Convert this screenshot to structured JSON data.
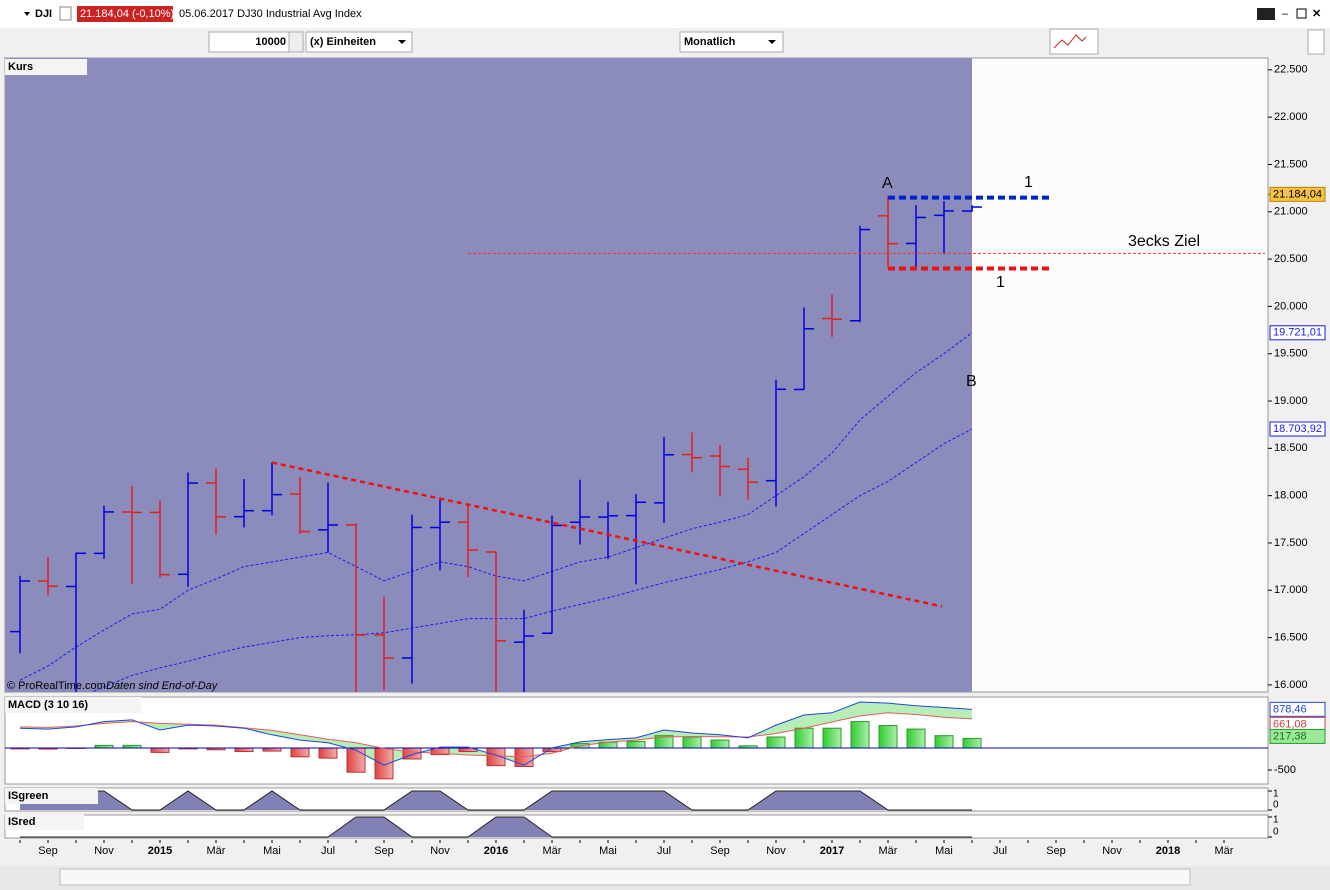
{
  "toolbar": {
    "symbol": "DJI",
    "last": "21.184,04 (-0,10%)",
    "description": "05.06.2017 DJ30 Industrial Avg Index",
    "units_value": "10000",
    "units_label": "(x) Einheiten",
    "period": "Monatlich"
  },
  "chart_data": [
    {
      "type": "ohlc",
      "title": "Kurs",
      "credit": "© ProRealTime.com",
      "credit_note": "Daten sind End-of-Day",
      "categories": [
        null,
        "Sep",
        null,
        "Nov",
        null,
        "2015",
        null,
        "Mär",
        null,
        "Mai",
        null,
        "Jul",
        null,
        "Sep",
        null,
        "Nov",
        null,
        "2016",
        null,
        "Mär",
        null,
        "Mai",
        null,
        "Jul",
        null,
        "Sep",
        null,
        "Nov",
        null,
        "2017",
        null,
        "Mär",
        null,
        "Mai",
        null,
        "Jul",
        null,
        "Sep",
        null,
        "Nov",
        null,
        "2018",
        null,
        "Mär"
      ],
      "open": [
        16563,
        17098,
        17040,
        17390,
        17827,
        17823,
        17169,
        18134,
        17778,
        17841,
        18017,
        17639,
        17690,
        16528,
        16285,
        17663,
        17719,
        17405,
        16452,
        16546,
        17719,
        17773,
        17789,
        17924,
        18434,
        18419,
        18279,
        18158,
        19122,
        19872,
        19848,
        20957,
        20665,
        20962,
        21008,
        null,
        null,
        null,
        null,
        null,
        null,
        null,
        null,
        null
      ],
      "high": [
        17153,
        17350,
        17395,
        17895,
        18103,
        17951,
        18244,
        18288,
        18175,
        18352,
        18199,
        18138,
        17711,
        16934,
        17799,
        17978,
        17899,
        17405,
        16795,
        17790,
        18168,
        17935,
        18016,
        18622,
        18668,
        18534,
        18399,
        19225,
        19987,
        20125,
        20851,
        21169,
        21070,
        21112,
        21070,
        null,
        null,
        null,
        null,
        null,
        null,
        null,
        null,
        null
      ],
      "low": [
        16333,
        16945,
        15855,
        17333,
        17068,
        17136,
        17037,
        17585,
        17665,
        17792,
        17597,
        17399,
        15370,
        15942,
        16014,
        17210,
        17139,
        15450,
        15503,
        16545,
        17484,
        17331,
        17063,
        17713,
        18247,
        17992,
        17959,
        17884,
        19120,
        19677,
        19831,
        20412,
        20379,
        20553,
        21000,
        null,
        null,
        null,
        null,
        null,
        null,
        null,
        null,
        null
      ],
      "close": [
        17098,
        17043,
        17391,
        17828,
        17823,
        17165,
        18133,
        17776,
        17841,
        18011,
        17620,
        17690,
        16528,
        16285,
        17664,
        17720,
        17425,
        16466,
        16517,
        17685,
        17774,
        17787,
        17930,
        18432,
        18401,
        18308,
        18142,
        19124,
        19763,
        19864,
        20812,
        20663,
        20940,
        21009,
        21050,
        null,
        null,
        null,
        null,
        null,
        null,
        null,
        null,
        null
      ],
      "up_color": "#0000dd",
      "down_color": "#dd2222",
      "lines": [
        {
          "color": "#1a1aee",
          "last_label": "19.721,01",
          "values": [
            16050,
            16200,
            16400,
            16580,
            16750,
            16800,
            17000,
            17120,
            17250,
            17300,
            17350,
            17400,
            17250,
            17100,
            17200,
            17300,
            17250,
            17150,
            17100,
            17200,
            17300,
            17350,
            17450,
            17550,
            17650,
            17720,
            17800,
            18000,
            18200,
            18450,
            18800,
            19050,
            19300,
            19500,
            19721.01,
            null,
            null,
            null,
            null,
            null,
            null,
            null,
            null,
            null
          ]
        },
        {
          "color": "#1a1aee",
          "last_label": "18.703,92",
          "values": [
            15600,
            15720,
            15850,
            15980,
            16100,
            16180,
            16250,
            16330,
            16400,
            16450,
            16500,
            16520,
            16530,
            16550,
            16600,
            16650,
            16700,
            16700,
            16700,
            16780,
            16850,
            16920,
            17000,
            17080,
            17150,
            17220,
            17300,
            17400,
            17600,
            17800,
            18000,
            18150,
            18350,
            18550,
            18703.92,
            null,
            null,
            null,
            null,
            null,
            null,
            null,
            null,
            null
          ]
        }
      ],
      "price_label": {
        "value": 21184.04,
        "label": "21.184,04"
      },
      "levels": [
        {
          "value": 21150,
          "color": "#0022cc"
        },
        {
          "value": 20400,
          "color": "#ee1111"
        },
        {
          "value": 20560,
          "color": "#ee3333"
        }
      ],
      "trendline": {
        "from": 18350,
        "to": 16830,
        "color": "#ee1111"
      },
      "annotations": {
        "a": "A",
        "b": "B",
        "top": "1",
        "bottom": "1",
        "target": "3ecks Ziel"
      },
      "ylim": [
        15925,
        22625
      ],
      "yticks": [
        {
          "value": 16000,
          "label": "16.000"
        },
        {
          "value": 16500,
          "label": "16.500"
        },
        {
          "value": 17000,
          "label": "17.000"
        },
        {
          "value": 17500,
          "label": "17.500"
        },
        {
          "value": 18000,
          "label": "18.000"
        },
        {
          "value": 18500,
          "label": "18.500"
        },
        {
          "value": 19000,
          "label": "19.000"
        },
        {
          "value": 19500,
          "label": "19.500"
        },
        {
          "value": 20000,
          "label": "20.000"
        },
        {
          "value": 20500,
          "label": "20.500"
        },
        {
          "value": 21000,
          "label": "21.000"
        },
        {
          "value": 21500,
          "label": "21.500"
        },
        {
          "value": 22000,
          "label": "22.000"
        },
        {
          "value": 22500,
          "label": "22.500"
        }
      ]
    },
    {
      "type": "macd",
      "title": "MACD (3 10 16)",
      "histogram": [
        -20,
        -25,
        -10,
        60,
        60,
        -100,
        -20,
        -40,
        -80,
        -70,
        -200,
        -230,
        -550,
        -700,
        -250,
        -150,
        -80,
        -400,
        -420,
        -80,
        100,
        130,
        150,
        280,
        250,
        180,
        50,
        250,
        450,
        450,
        600,
        510,
        430,
        280,
        217.38,
        null,
        null,
        null,
        null,
        null,
        null,
        null,
        null,
        null
      ],
      "histogram_label": "217,38",
      "macd": [
        450,
        430,
        480,
        600,
        640,
        410,
        520,
        500,
        450,
        300,
        180,
        120,
        -50,
        -390,
        -150,
        20,
        20,
        -160,
        -390,
        0,
        140,
        190,
        230,
        410,
        340,
        300,
        230,
        520,
        750,
        800,
        1045,
        1020,
        960,
        920,
        878.46,
        null,
        null,
        null,
        null,
        null,
        null,
        null,
        null,
        null
      ],
      "macd_label": "878,46",
      "signal": [
        480,
        470,
        500,
        560,
        600,
        560,
        540,
        520,
        460,
        400,
        300,
        200,
        120,
        -10,
        -90,
        -120,
        -160,
        -180,
        -200,
        -120,
        50,
        130,
        180,
        250,
        260,
        255,
        250,
        330,
        450,
        590,
        730,
        800,
        760,
        700,
        661.08,
        null,
        null,
        null,
        null,
        null,
        null,
        null,
        null,
        null
      ],
      "signal_label": "661,08",
      "ylim": [
        -818,
        1159
      ],
      "yticks": [
        -500
      ]
    },
    {
      "type": "area",
      "title": "ISgreen",
      "values": [
        1,
        1,
        1,
        1,
        0,
        0,
        1,
        0,
        0,
        1,
        0,
        0,
        0,
        0,
        1,
        1,
        0,
        0,
        0,
        1,
        1,
        1,
        1,
        1,
        0,
        0,
        0,
        1,
        1,
        1,
        1,
        0,
        0,
        0,
        0,
        null,
        null,
        null,
        null,
        null,
        null,
        null,
        null,
        null
      ],
      "ylim": [
        0,
        1
      ],
      "yticks": [
        1,
        0
      ]
    },
    {
      "type": "area",
      "title": "ISred",
      "values": [
        0,
        0,
        0,
        0,
        0,
        0,
        0,
        0,
        0,
        0,
        0,
        0,
        1,
        1,
        0,
        0,
        0,
        1,
        1,
        0,
        0,
        0,
        0,
        0,
        0,
        0,
        0,
        0,
        0,
        0,
        0,
        0,
        0,
        0,
        0,
        null,
        null,
        null,
        null,
        null,
        null,
        null,
        null,
        null
      ],
      "ylim": [
        0,
        1
      ],
      "yticks": [
        1,
        0
      ]
    }
  ]
}
